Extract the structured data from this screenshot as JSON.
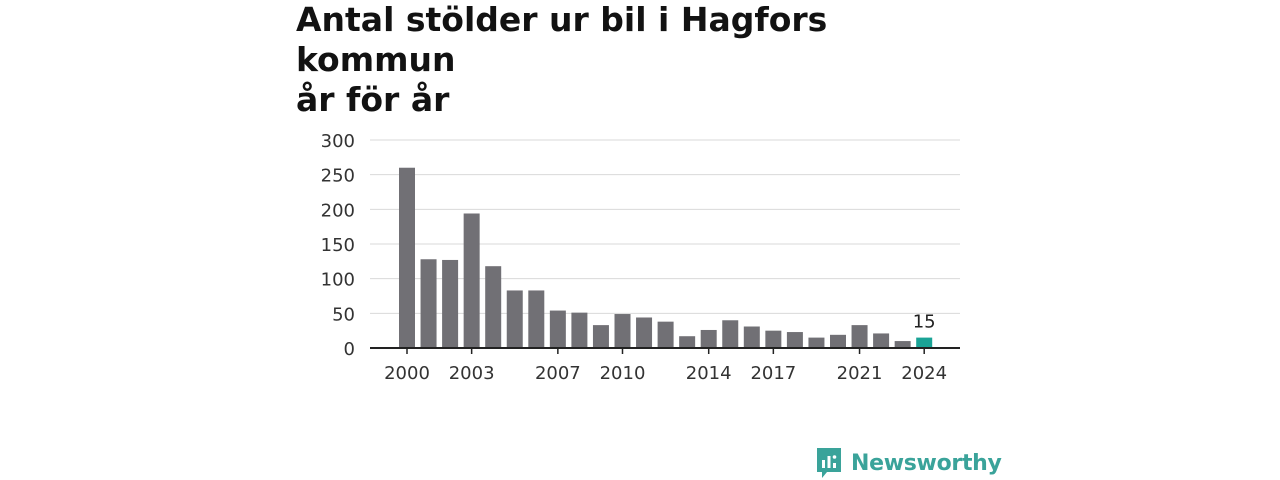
{
  "title_line1": "Antal stölder ur bil i Hagfors kommun",
  "title_line2": "år för år",
  "brand": "Newsworthy",
  "colors": {
    "bar": "#717075",
    "highlight": "#1aa396",
    "grid": "#d9d9d9",
    "axis": "#222222",
    "brand": "#3aa39a"
  },
  "chart_data": {
    "type": "bar",
    "categories": [
      "2000",
      "2001",
      "2002",
      "2003",
      "2004",
      "2005",
      "2006",
      "2007",
      "2008",
      "2009",
      "2010",
      "2011",
      "2012",
      "2013",
      "2014",
      "2015",
      "2016",
      "2017",
      "2018",
      "2019",
      "2020",
      "2021",
      "2022",
      "2023",
      "2024"
    ],
    "values": [
      260,
      128,
      127,
      194,
      118,
      83,
      83,
      54,
      51,
      33,
      49,
      44,
      38,
      17,
      26,
      40,
      31,
      25,
      23,
      15,
      19,
      33,
      21,
      10,
      15
    ],
    "x_tick_labels": [
      "2000",
      "2003",
      "2007",
      "2010",
      "2014",
      "2017",
      "2021",
      "2024"
    ],
    "y_ticks": [
      0,
      50,
      100,
      150,
      200,
      250,
      300
    ],
    "ylim": [
      0,
      300
    ],
    "highlight": {
      "category": "2024",
      "label": "15"
    },
    "grid": true
  }
}
